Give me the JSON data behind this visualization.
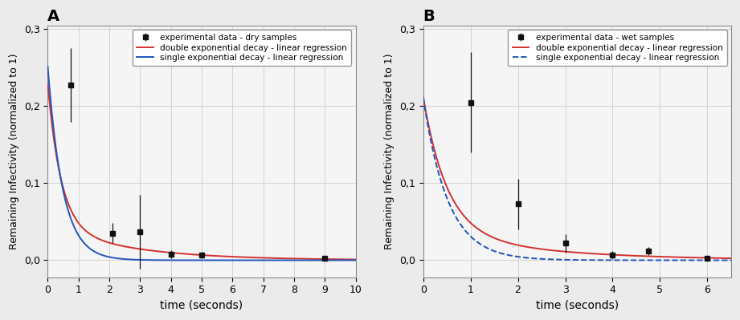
{
  "panel_A": {
    "label": "A",
    "exp_x": [
      0.75,
      2.1,
      3.0,
      4.0,
      5.0,
      9.0
    ],
    "exp_y": [
      0.228,
      0.035,
      0.037,
      0.008,
      0.007,
      0.003
    ],
    "exp_yerr": [
      0.048,
      0.013,
      0.048,
      0.005,
      0.004,
      0.002
    ],
    "xlim": [
      0,
      10
    ],
    "xticks": [
      0,
      1,
      2,
      3,
      4,
      5,
      6,
      7,
      8,
      9,
      10
    ],
    "ylim": [
      -0.022,
      0.305
    ],
    "yticks": [
      0.0,
      0.1,
      0.2,
      0.3
    ],
    "ytick_labels": [
      "0,0",
      "0,1",
      "0,2",
      "0,3"
    ],
    "double_exp_params": [
      0.185,
      2.35,
      0.045,
      0.38
    ],
    "single_exp_params": [
      0.252,
      2.05
    ],
    "xlabel": "time (seconds)",
    "ylabel": "Remaining Infectivity (normalized to 1)",
    "legend_data": "experimental data - dry samples",
    "legend_double": "double exponential decay - linear regression",
    "legend_single": "single exponential decay - linear regression",
    "single_line_style": "solid",
    "double_color": "#d43030",
    "single_color": "#2255bb"
  },
  "panel_B": {
    "label": "B",
    "exp_x": [
      1.0,
      2.0,
      3.0,
      4.0,
      4.75,
      6.0
    ],
    "exp_y": [
      0.205,
      0.073,
      0.022,
      0.007,
      0.012,
      0.003
    ],
    "exp_yerr": [
      0.065,
      0.033,
      0.012,
      0.005,
      0.005,
      0.002
    ],
    "xlim": [
      0,
      6.5
    ],
    "xticks": [
      0,
      1,
      2,
      3,
      4,
      5,
      6
    ],
    "ylim": [
      -0.022,
      0.305
    ],
    "yticks": [
      0.0,
      0.1,
      0.2,
      0.3
    ],
    "ytick_labels": [
      "0,0",
      "0,1",
      "0,2",
      "0,3"
    ],
    "double_exp_params": [
      0.175,
      2.0,
      0.038,
      0.42
    ],
    "single_exp_params": [
      0.212,
      1.92
    ],
    "xlabel": "time (seconds)",
    "ylabel": "Remaining Infectivity (normalized to 1)",
    "legend_data": "experimental data - wet samples",
    "legend_double": "double exponential decay - linear regression",
    "legend_single": "single exponential decay - linear regression",
    "single_line_style": "dashed",
    "double_color": "#d43030",
    "single_color": "#2255bb"
  },
  "background_color": "#ebebeb",
  "plot_bg_color": "#f5f5f5",
  "grid_color": "#cccccc",
  "marker_color": "#111111",
  "marker_size": 5
}
